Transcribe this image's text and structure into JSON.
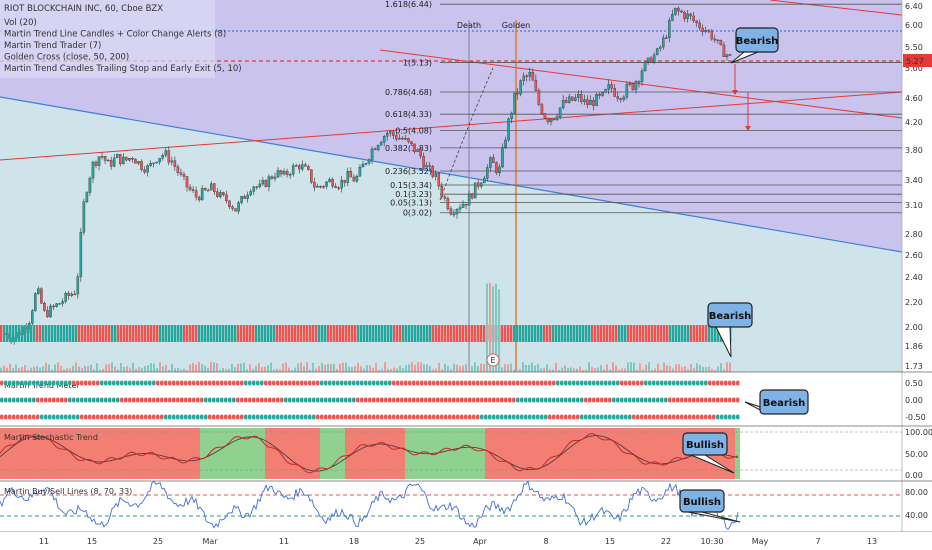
{
  "header": {
    "symbol_title": "RIOT BLOCKCHAIN INC, 60, Cboe BZX",
    "indicators": [
      "Vol (20)",
      "Martin Trend Line Candles + Color Change Alerts (8)",
      "Martin Trend Trader (7)",
      "Golden Cross (close, 50, 200)",
      "Martin Trend Candles Trailing Stop and Early Exit (5, 10)"
    ]
  },
  "colors": {
    "bull": "#26a69a",
    "bear": "#ef5350",
    "trend_red": "#e53935",
    "trend_blue": "#3d7fd6",
    "zone_purple": "#c9c3ee",
    "zone_blue": "#cfe3ea",
    "last_price_bg": "#e53935",
    "stoch_green_bg": "#8fd18f",
    "stoch_red_bg": "#f27e74",
    "callout_bg": "#7fb2e5"
  },
  "chart_data": [
    {
      "type": "candlestick",
      "title": "RIOT BLOCKCHAIN INC, 60, Cboe BZX",
      "ylim": [
        1.65,
        6.6
      ],
      "y_ticks": [
        "6.40",
        "6.00",
        "5.50",
        "5.00",
        "4.60",
        "4.20",
        "3.80",
        "3.40",
        "3.10",
        "2.80",
        "2.60",
        "2.40",
        "2.20",
        "2.00",
        "1.86",
        "1.73"
      ],
      "last_price": "5.27",
      "x_ticks": [
        "11",
        "15",
        "25",
        "Mar",
        "11",
        "18",
        "25",
        "Apr",
        "8",
        "15",
        "22",
        "10:30",
        "May",
        "7",
        "13"
      ],
      "fib_levels": [
        {
          "label": "1.618(6.44)",
          "value": 6.44
        },
        {
          "label": "1(5.13)",
          "value": 5.13
        },
        {
          "label": "0.786(4.68)",
          "value": 4.68
        },
        {
          "label": "0.618(4.33)",
          "value": 4.33
        },
        {
          "label": "0.5(4.08)",
          "value": 4.08
        },
        {
          "label": "0.382(3.83)",
          "value": 3.83
        },
        {
          "label": "0.236(3.52)",
          "value": 3.52
        },
        {
          "label": "0.15(3.34)",
          "value": 3.34
        },
        {
          "label": "0.1(3.23)",
          "value": 3.23
        },
        {
          "label": "0.05(3.13)",
          "value": 3.13
        },
        {
          "label": "0(3.02)",
          "value": 3.02
        }
      ],
      "event_labels": {
        "death": "Death",
        "golden": "Golden",
        "earnings": "E"
      },
      "callouts": [
        "Bearish",
        "Bearish"
      ],
      "close_path": [
        1.95,
        1.92,
        1.97,
        2.05,
        2.3,
        2.1,
        2.15,
        2.2,
        2.25,
        2.3,
        3.2,
        3.6,
        3.75,
        3.6,
        3.7,
        3.65,
        3.72,
        3.6,
        3.55,
        3.7,
        3.75,
        3.65,
        3.45,
        3.3,
        3.2,
        3.25,
        3.3,
        3.2,
        3.15,
        3.05,
        3.2,
        3.35,
        3.3,
        3.4,
        3.5,
        3.45,
        3.55,
        3.6,
        3.5,
        3.3,
        3.35,
        3.4,
        3.35,
        3.45,
        3.4,
        3.6,
        3.8,
        3.95,
        4.05,
        4.0,
        3.95,
        3.85,
        3.75,
        3.55,
        3.45,
        3.2,
        3.05,
        3.1,
        3.15,
        3.3,
        3.45,
        3.65,
        3.5,
        4.1,
        4.6,
        4.85,
        4.9,
        4.5,
        4.25,
        4.3,
        4.5,
        4.55,
        4.6,
        4.5,
        4.55,
        4.6,
        4.75,
        4.65,
        4.7,
        4.8,
        5.0,
        5.2,
        5.4,
        5.8,
        6.3,
        6.25,
        6.15,
        6.0,
        5.9,
        5.7,
        5.4,
        5.27
      ]
    },
    {
      "type": "heatmap",
      "title": "Martin Trend Meter",
      "y_ticks": [
        "0.50",
        "0.00",
        "-0.50"
      ],
      "callout": "Bearish"
    },
    {
      "type": "line",
      "title": "Martin Stochastic Trend",
      "y_ticks": [
        "100.00",
        "50.00",
        "0.00"
      ],
      "callout": "Bullish"
    },
    {
      "type": "line",
      "title": "Martin Buy/Sell Lines (8, 70, 33)",
      "y_ticks": [
        "80.00",
        "40.00"
      ],
      "callout": "Bullish"
    }
  ]
}
